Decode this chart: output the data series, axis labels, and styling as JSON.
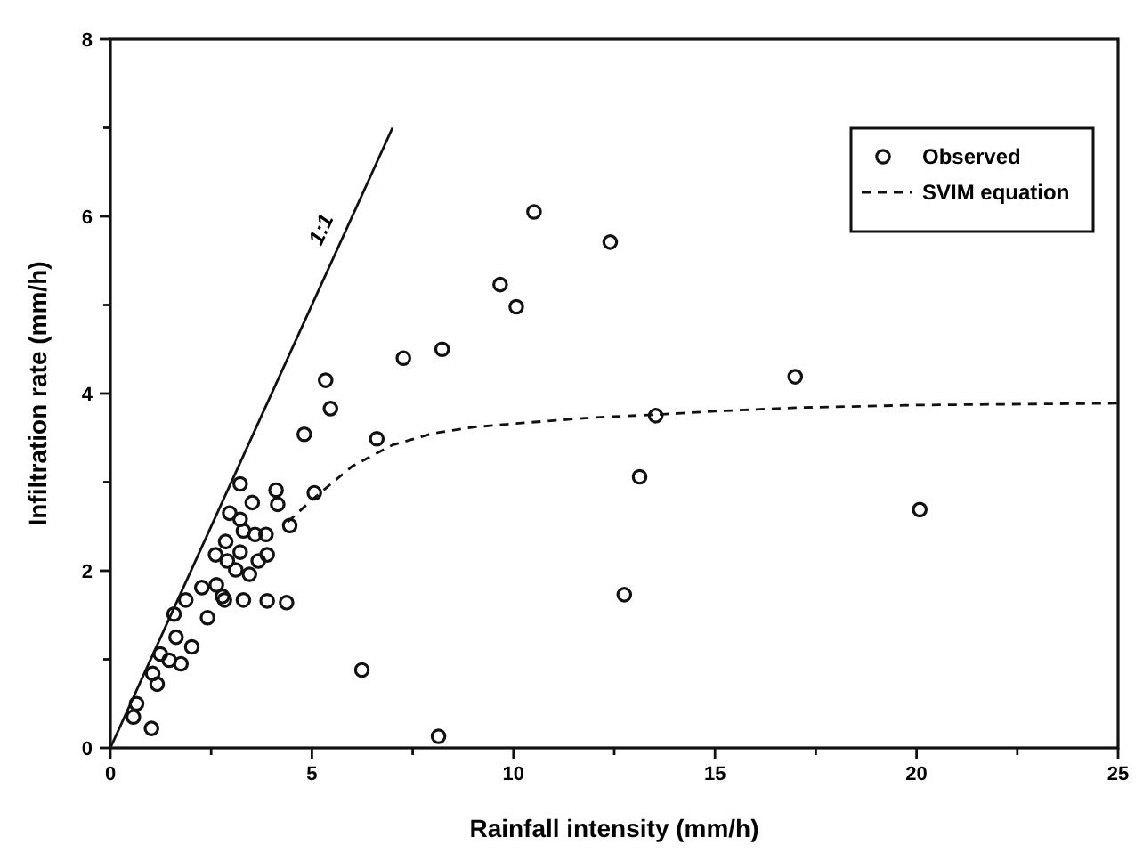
{
  "chart_data": {
    "type": "scatter",
    "xlabel": "Rainfall intensity (mm/h)",
    "ylabel": "Infiltration rate (mm/h)",
    "xlim": [
      0,
      25
    ],
    "ylim": [
      0,
      8
    ],
    "xticks": [
      0,
      {
        "value": 2.5,
        "label": null
      },
      5,
      {
        "value": 7.5,
        "label": null
      },
      10,
      {
        "value": 12.5,
        "label": null
      },
      15,
      {
        "value": 17.5,
        "label": null
      },
      20,
      {
        "value": 22.5,
        "label": null
      },
      25
    ],
    "yticks": [
      0,
      {
        "value": 1,
        "label": null
      },
      2,
      {
        "value": 3,
        "label": null
      },
      4,
      {
        "value": 5,
        "label": null
      },
      6,
      {
        "value": 7,
        "label": null
      },
      8
    ],
    "grid": false,
    "legend": "top right",
    "series": [
      {
        "name": "Observed",
        "marker": "circle",
        "color": "#111111",
        "x": [
          0.57,
          0.65,
          1.02,
          1.16,
          1.05,
          1.24,
          1.46,
          1.75,
          2.02,
          1.63,
          1.58,
          1.87,
          2.27,
          2.41,
          2.78,
          2.63,
          2.61,
          2.9,
          2.86,
          2.96,
          3.22,
          3.52,
          3.3,
          3.59,
          3.86,
          3.22,
          3.11,
          3.45,
          3.67,
          3.89,
          3.22,
          3.3,
          3.89,
          4.37,
          2.83,
          4.11,
          4.15,
          4.45,
          4.81,
          5.06,
          5.34,
          5.46,
          6.61,
          7.27,
          8.23,
          9.67,
          10.07,
          10.51,
          12.4,
          13.53,
          13.13,
          12.75,
          6.24,
          8.14,
          16.99,
          20.08
        ],
        "values": [
          0.35,
          0.5,
          0.22,
          0.72,
          0.84,
          1.06,
          0.99,
          0.95,
          1.14,
          1.25,
          1.51,
          1.67,
          1.81,
          1.47,
          1.71,
          1.84,
          2.18,
          2.11,
          2.33,
          2.65,
          2.98,
          2.77,
          2.45,
          2.41,
          2.41,
          2.21,
          2.01,
          1.96,
          2.11,
          2.18,
          2.58,
          1.67,
          1.66,
          1.64,
          1.67,
          2.91,
          2.75,
          2.51,
          3.54,
          2.88,
          4.15,
          3.83,
          3.49,
          4.4,
          4.5,
          5.23,
          4.98,
          6.05,
          5.71,
          3.75,
          3.06,
          1.73,
          0.88,
          0.13,
          4.19,
          2.69
        ]
      },
      {
        "name": "SVIM equation",
        "type": "line",
        "line_style": "dashed",
        "color": "#111111",
        "x": [
          4.4,
          5,
          6,
          7,
          8,
          9,
          10,
          12,
          13.5,
          15,
          17,
          20,
          25
        ],
        "values": [
          2.55,
          2.8,
          3.18,
          3.42,
          3.55,
          3.62,
          3.66,
          3.73,
          3.76,
          3.8,
          3.84,
          3.87,
          3.89
        ]
      },
      {
        "name": "1:1",
        "type": "line",
        "line_style": "solid",
        "color": "#111111",
        "x": [
          0,
          7
        ],
        "values": [
          0,
          7
        ]
      }
    ]
  }
}
